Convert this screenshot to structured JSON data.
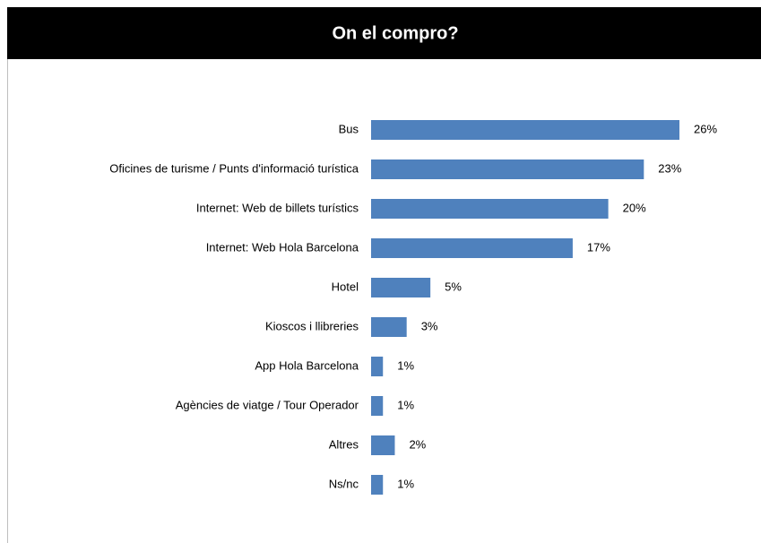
{
  "chart_data": {
    "type": "bar",
    "orientation": "horizontal",
    "title": "On el compro?",
    "categories": [
      "Bus",
      "Oficines de turisme / Punts d'informació turística",
      "Internet: Web de billets turístics",
      "Internet: Web Hola Barcelona",
      "Hotel",
      "Kioscos i llibreries",
      "App Hola Barcelona",
      "Agències de viatge / Tour Operador",
      "Altres",
      "Ns/nc"
    ],
    "values": [
      26,
      23,
      20,
      17,
      5,
      3,
      1,
      1,
      2,
      1
    ],
    "value_labels": [
      "26%",
      "23%",
      "20%",
      "17%",
      "5%",
      "3%",
      "1%",
      "1%",
      "2%",
      "1%"
    ],
    "color": "#4f81bd"
  }
}
